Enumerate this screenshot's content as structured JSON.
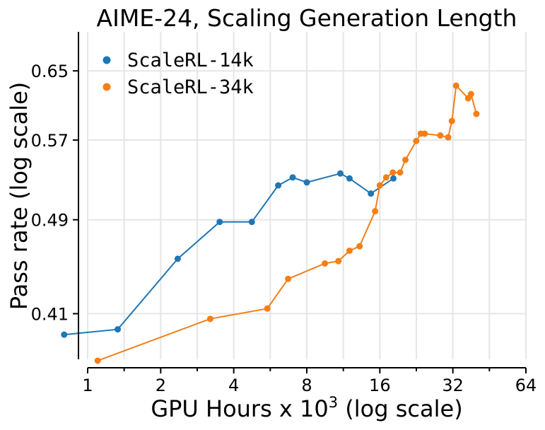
{
  "chart_data": {
    "type": "line",
    "title": "AIME-24, Scaling Generation Length",
    "xlabel_main": "GPU Hours x 10",
    "xlabel_sup": "3",
    "xlabel_tail": " (log scale)",
    "ylabel": "Pass rate (log scale)",
    "xscale": "log2",
    "yscale": "log",
    "xlim": [
      1,
      64
    ],
    "ylim": [
      0.37,
      0.7
    ],
    "xticks": [
      1,
      2,
      4,
      8,
      16,
      32,
      64
    ],
    "xtick_labels": [
      "1",
      "2",
      "4",
      "8",
      "16",
      "32",
      "64"
    ],
    "yticks": [
      0.41,
      0.49,
      0.57,
      0.65
    ],
    "ytick_labels": [
      "0.41",
      "0.49",
      "0.57",
      "0.65"
    ],
    "legend_position": "top-left",
    "series": [
      {
        "name": "ScaleRL-14k",
        "color": "#1f77b4",
        "x": [
          0.8,
          1.33,
          2.35,
          3.5,
          4.75,
          6.1,
          7.0,
          8.0,
          11.0,
          12.0,
          14.7,
          18.2
        ],
        "y": [
          0.394,
          0.398,
          0.455,
          0.488,
          0.488,
          0.523,
          0.531,
          0.526,
          0.535,
          0.53,
          0.515,
          0.53
        ]
      },
      {
        "name": "ScaleRL-34k",
        "color": "#f47f17",
        "x": [
          1.1,
          3.2,
          5.5,
          6.7,
          9.5,
          10.8,
          12.0,
          13.2,
          15.3,
          16.0,
          17.0,
          18.1,
          19.4,
          20.4,
          22.6,
          23.6,
          24.5,
          28.4,
          30.6,
          31.7,
          33.0,
          37.0,
          38.0,
          40.0
        ],
        "y": [
          0.375,
          0.406,
          0.414,
          0.438,
          0.451,
          0.453,
          0.462,
          0.466,
          0.498,
          0.523,
          0.531,
          0.536,
          0.536,
          0.549,
          0.569,
          0.577,
          0.577,
          0.575,
          0.573,
          0.591,
          0.632,
          0.617,
          0.622,
          0.599
        ]
      }
    ]
  }
}
